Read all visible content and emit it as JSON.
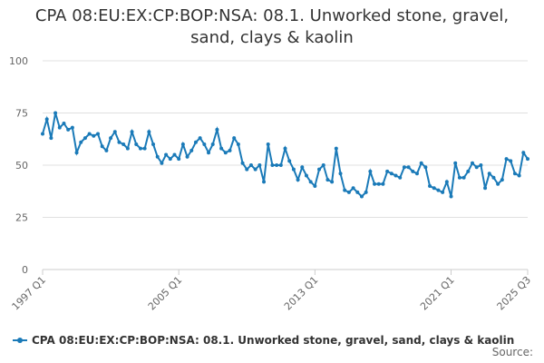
{
  "chart_data": {
    "type": "line",
    "title": "CPA 08:EU:EX:CP:BOP:NSA: 08.1. Unworked stone, gravel, sand, clays & kaolin",
    "categories": [
      "1997 Q1",
      null,
      null,
      null,
      null,
      null,
      null,
      null,
      null,
      null,
      null,
      null,
      null,
      null,
      null,
      null,
      null,
      null,
      null,
      null,
      null,
      null,
      null,
      null,
      null,
      null,
      null,
      null,
      null,
      null,
      null,
      null,
      "2005 Q1",
      null,
      null,
      null,
      null,
      null,
      null,
      null,
      null,
      null,
      null,
      null,
      null,
      null,
      null,
      null,
      null,
      null,
      null,
      null,
      null,
      null,
      null,
      null,
      null,
      null,
      null,
      null,
      null,
      null,
      null,
      null,
      "2013 Q1",
      null,
      null,
      null,
      null,
      null,
      null,
      null,
      null,
      null,
      null,
      null,
      null,
      null,
      null,
      null,
      null,
      null,
      null,
      null,
      null,
      null,
      null,
      null,
      null,
      null,
      null,
      null,
      null,
      null,
      null,
      null,
      "2021 Q1",
      null,
      null,
      null,
      null,
      null,
      null,
      null,
      null,
      null,
      null,
      null,
      null,
      null,
      null,
      null,
      null,
      null,
      "2025 Q3"
    ],
    "series": [
      {
        "name": "CPA 08:EU:EX:CP:BOP:NSA: 08.1. Unworked stone, gravel, sand, clays & kaolin",
        "color": "#1a7ab8",
        "values": [
          65,
          72,
          63,
          75,
          68,
          70,
          67,
          68,
          56,
          61,
          63,
          65,
          64,
          65,
          59,
          57,
          63,
          66,
          61,
          60,
          58,
          66,
          60,
          58,
          58,
          66,
          60,
          54,
          51,
          55,
          53,
          55,
          53,
          60,
          54,
          57,
          61,
          63,
          60,
          56,
          60,
          67,
          58,
          56,
          57,
          63,
          60,
          51,
          48,
          50,
          48,
          50,
          42,
          60,
          50,
          50,
          50,
          58,
          52,
          48,
          43,
          49,
          45,
          42,
          40,
          48,
          50,
          43,
          42,
          58,
          46,
          38,
          37,
          39,
          37,
          35,
          37,
          47,
          41,
          41,
          41,
          47,
          46,
          45,
          44,
          49,
          49,
          47,
          46,
          51,
          49,
          40,
          39,
          38,
          37,
          42,
          35,
          51,
          44,
          44,
          47,
          51,
          49,
          50,
          39,
          46,
          44,
          41,
          43,
          53,
          52,
          46,
          45,
          56,
          53
        ]
      }
    ],
    "ylim": [
      0,
      100
    ],
    "yticks": [
      0,
      25,
      50,
      75,
      100
    ],
    "grid": true,
    "source": "Source:"
  }
}
